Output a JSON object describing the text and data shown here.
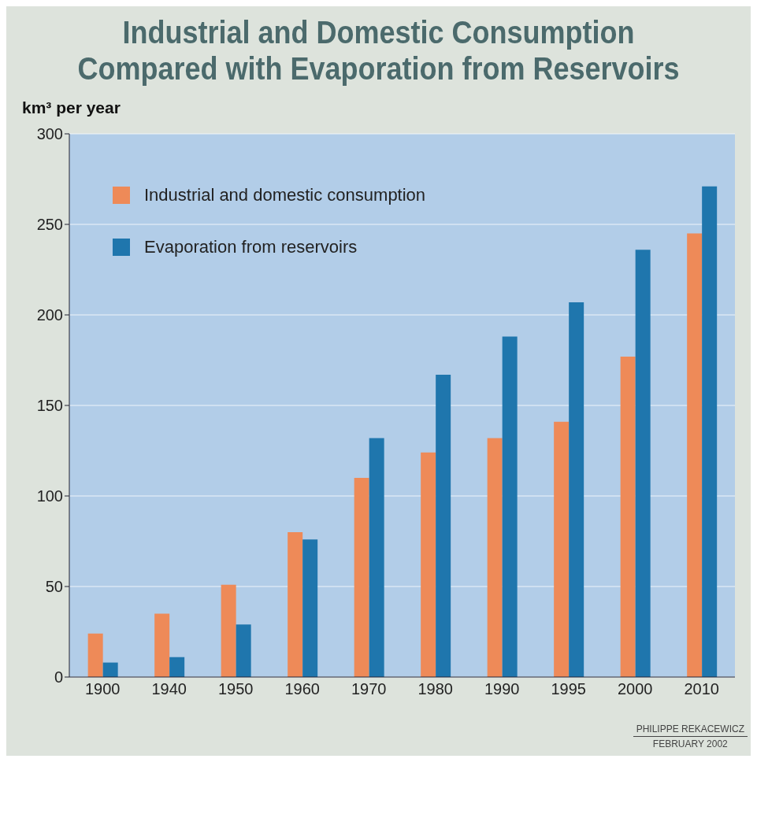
{
  "chart_data": {
    "type": "bar",
    "title": "Industrial and Domestic Consumption\nCompared with Evaporation from Reservoirs",
    "ylabel": "km³ per year",
    "categories": [
      "1900",
      "1940",
      "1950",
      "1960",
      "1970",
      "1980",
      "1990",
      "1995",
      "2000",
      "2010"
    ],
    "series": [
      {
        "name": "Industrial and domestic consumption",
        "color": "#ee8a58",
        "values": [
          24,
          35,
          51,
          80,
          110,
          124,
          132,
          141,
          177,
          245
        ]
      },
      {
        "name": "Evaporation from reservoirs",
        "color": "#1f76ad",
        "values": [
          8,
          11,
          29,
          76,
          132,
          167,
          188,
          207,
          236,
          271
        ]
      }
    ],
    "ylim": [
      0,
      300
    ],
    "yticks": [
      0,
      50,
      100,
      150,
      200,
      250,
      300
    ],
    "grid": "y",
    "legend": "top left",
    "annotations": [
      "PHILIPPE REKACEWICZ",
      "FEBRUARY 2002"
    ]
  }
}
